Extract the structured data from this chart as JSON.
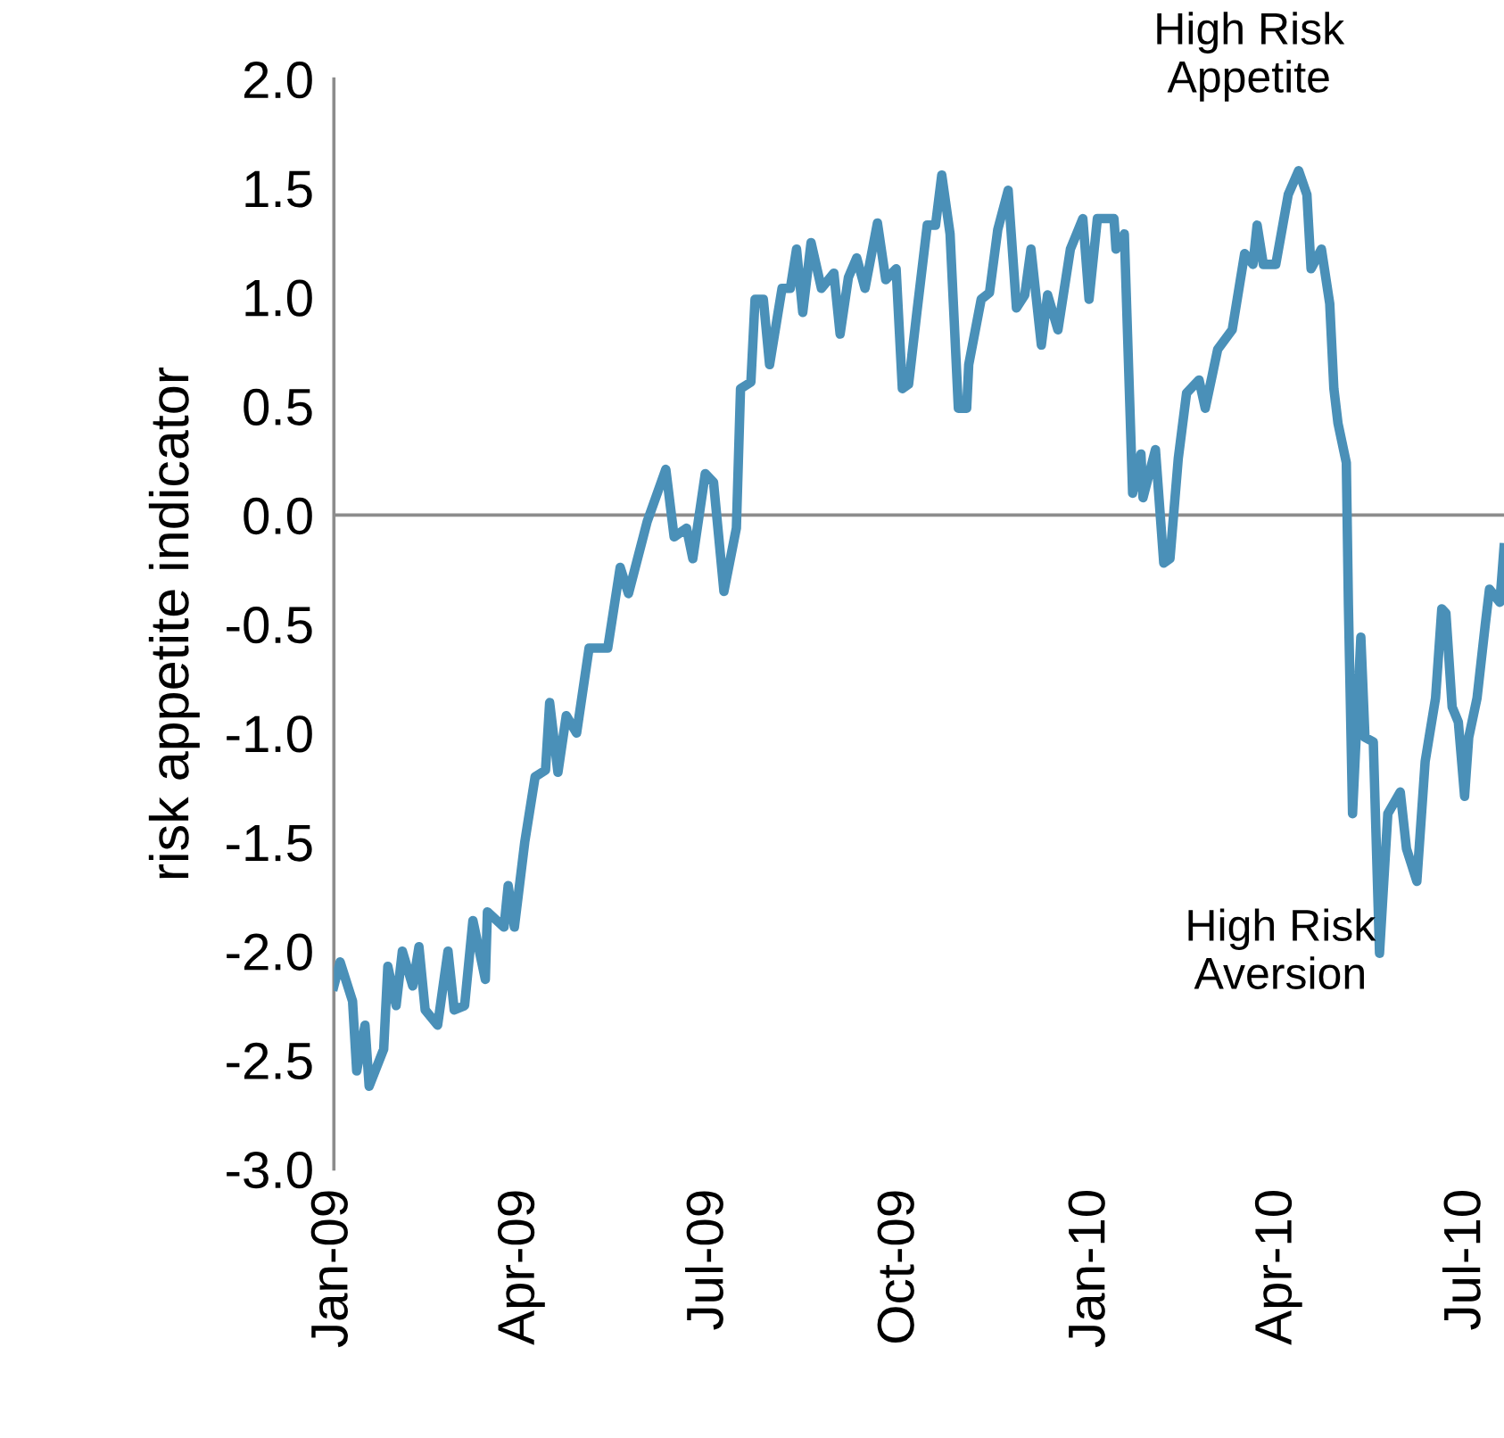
{
  "chart_data": {
    "type": "line",
    "ylabel": "risk appetite indicator",
    "x": [
      "2009-01-01",
      "2009-01-04",
      "2009-01-10",
      "2009-01-12",
      "2009-01-16",
      "2009-01-18",
      "2009-01-25",
      "2009-01-27",
      "2009-01-31",
      "2009-02-03",
      "2009-02-08",
      "2009-02-11",
      "2009-02-14",
      "2009-02-20",
      "2009-02-25",
      "2009-02-28",
      "2009-03-05",
      "2009-03-09",
      "2009-03-15",
      "2009-03-16",
      "2009-03-24",
      "2009-03-26",
      "2009-03-29",
      "2009-04-03",
      "2009-04-08",
      "2009-04-13",
      "2009-04-15",
      "2009-04-19",
      "2009-04-23",
      "2009-04-28",
      "2009-05-04",
      "2009-05-13",
      "2009-05-19",
      "2009-05-23",
      "2009-06-01",
      "2009-06-10",
      "2009-06-14",
      "2009-06-20",
      "2009-06-23",
      "2009-06-29",
      "2009-07-03",
      "2009-07-08",
      "2009-07-14",
      "2009-07-16",
      "2009-07-21",
      "2009-07-23",
      "2009-07-27",
      "2009-07-30",
      "2009-08-05",
      "2009-08-09",
      "2009-08-12",
      "2009-08-15",
      "2009-08-19",
      "2009-08-24",
      "2009-08-30",
      "2009-09-02",
      "2009-09-06",
      "2009-09-10",
      "2009-09-14",
      "2009-09-20",
      "2009-09-24",
      "2009-09-29",
      "2009-10-02",
      "2009-10-05",
      "2009-10-09",
      "2009-10-14",
      "2009-10-18",
      "2009-10-21",
      "2009-10-25",
      "2009-10-29",
      "2009-11-02",
      "2009-11-03",
      "2009-11-09",
      "2009-11-13",
      "2009-11-17",
      "2009-11-22",
      "2009-11-26",
      "2009-11-30",
      "2009-12-03",
      "2009-12-08",
      "2009-12-11",
      "2009-12-16",
      "2009-12-22",
      "2009-12-28",
      "2009-12-31",
      "2010-01-04",
      "2010-01-12",
      "2010-01-13",
      "2010-01-17",
      "2010-01-21",
      "2010-01-25",
      "2010-01-26",
      "2010-02-01",
      "2010-02-05",
      "2010-02-08",
      "2010-02-12",
      "2010-02-16",
      "2010-02-22",
      "2010-02-25",
      "2010-03-03",
      "2010-03-10",
      "2010-03-16",
      "2010-03-20",
      "2010-03-22",
      "2010-03-25",
      "2010-03-31",
      "2010-04-06",
      "2010-04-11",
      "2010-04-15",
      "2010-04-17",
      "2010-04-22",
      "2010-04-26",
      "2010-04-28",
      "2010-04-30",
      "2010-05-04",
      "2010-05-05",
      "2010-05-07",
      "2010-05-11",
      "2010-05-13",
      "2010-05-17",
      "2010-05-20",
      "2010-05-24",
      "2010-05-30",
      "2010-06-02",
      "2010-06-07",
      "2010-06-11",
      "2010-06-16",
      "2010-06-19",
      "2010-06-21",
      "2010-06-24",
      "2010-06-27",
      "2010-06-30",
      "2010-07-02",
      "2010-07-06",
      "2010-07-10",
      "2010-07-12",
      "2010-07-17",
      "2010-07-19"
    ],
    "series": [
      {
        "color": "#4a90b8",
        "values": [
          -2.16,
          -2.05,
          -2.23,
          -2.55,
          -2.34,
          -2.62,
          -2.45,
          -2.07,
          -2.25,
          -2.0,
          -2.16,
          -1.98,
          -2.27,
          -2.34,
          -2.0,
          -2.27,
          -2.25,
          -1.86,
          -2.13,
          -1.82,
          -1.89,
          -1.7,
          -1.89,
          -1.5,
          -1.2,
          -1.17,
          -0.86,
          -1.18,
          -0.92,
          -1.0,
          -0.61,
          -0.61,
          -0.24,
          -0.36,
          -0.03,
          0.21,
          -0.1,
          -0.06,
          -0.2,
          0.19,
          0.15,
          -0.35,
          -0.06,
          0.58,
          0.61,
          0.99,
          0.99,
          0.69,
          1.04,
          1.04,
          1.22,
          0.93,
          1.25,
          1.04,
          1.11,
          0.83,
          1.09,
          1.18,
          1.04,
          1.34,
          1.08,
          1.13,
          0.58,
          0.6,
          0.93,
          1.33,
          1.33,
          1.56,
          1.29,
          0.49,
          0.49,
          0.69,
          0.99,
          1.02,
          1.31,
          1.49,
          0.95,
          1.01,
          1.22,
          0.78,
          1.01,
          0.85,
          1.22,
          1.36,
          0.99,
          1.36,
          1.36,
          1.22,
          1.29,
          0.1,
          0.28,
          0.08,
          0.3,
          -0.22,
          -0.2,
          0.26,
          0.56,
          0.62,
          0.49,
          0.76,
          0.85,
          1.2,
          1.15,
          1.33,
          1.15,
          1.15,
          1.47,
          1.58,
          1.47,
          1.13,
          1.22,
          0.97,
          0.58,
          0.42,
          0.24,
          -0.41,
          -1.37,
          -0.56,
          -1.02,
          -1.04,
          -2.01,
          -1.37,
          -1.27,
          -1.53,
          -1.68,
          -1.13,
          -0.84,
          -0.43,
          -0.45,
          -0.88,
          -0.95,
          -1.29,
          -1.02,
          -0.84,
          -0.5,
          -0.34,
          -0.4,
          -0.15
        ]
      }
    ],
    "xlim": [
      "2009-01-01",
      "2010-07-19"
    ],
    "xticks": [
      {
        "value": "2009-01-01",
        "label": "Jan-09"
      },
      {
        "value": "2009-04-01",
        "label": "Apr-09"
      },
      {
        "value": "2009-07-01",
        "label": "Jul-09"
      },
      {
        "value": "2009-10-01",
        "label": "Oct-09"
      },
      {
        "value": "2010-01-01",
        "label": "Jan-10"
      },
      {
        "value": "2010-04-01",
        "label": "Apr-10"
      },
      {
        "value": "2010-07-01",
        "label": "Jul-10"
      }
    ],
    "ylim": [
      -3,
      2
    ],
    "yticks": [
      {
        "value": -3,
        "label": "-3.0"
      },
      {
        "value": -2.5,
        "label": "-2.5"
      },
      {
        "value": -2,
        "label": "-2.0"
      },
      {
        "value": -1.5,
        "label": "-1.5"
      },
      {
        "value": -1,
        "label": "-1.0"
      },
      {
        "value": -0.5,
        "label": "-0.5"
      },
      {
        "value": 0,
        "label": "0.0"
      },
      {
        "value": 0.5,
        "label": "0.5"
      },
      {
        "value": 1,
        "label": "1.0"
      },
      {
        "value": 1.5,
        "label": "1.5"
      },
      {
        "value": 2,
        "label": "2.0"
      }
    ],
    "ref_lines": [
      {
        "axis": "y",
        "value": 0,
        "color": "#8c8c8c"
      }
    ],
    "annotations": [
      {
        "text": "High Risk\nAppetite",
        "x": "2010-04-11",
        "y": 1.58
      },
      {
        "text": "High Risk\nAversion",
        "x": "2010-05-20",
        "y": -2.01
      }
    ],
    "grid": false,
    "marker": "none",
    "line_style": "solid"
  }
}
